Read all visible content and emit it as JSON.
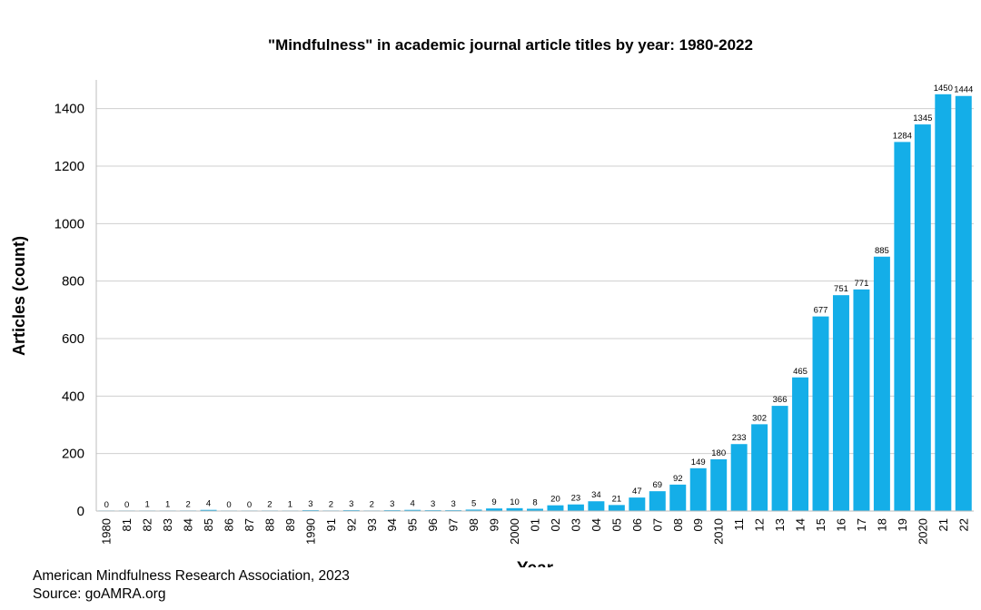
{
  "chart_data": {
    "type": "bar",
    "title": "\"Mindfulness\" in academic journal article titles by year: 1980-2022",
    "xlabel": "Year",
    "ylabel": "Articles (count)",
    "ylim": [
      0,
      1500
    ],
    "yticks": [
      0,
      200,
      400,
      600,
      800,
      1000,
      1200,
      1400
    ],
    "grid": true,
    "legend": "none",
    "bar_color": "#14AEE8",
    "categories": [
      "1980",
      "81",
      "82",
      "83",
      "84",
      "85",
      "86",
      "87",
      "88",
      "89",
      "1990",
      "91",
      "92",
      "93",
      "94",
      "95",
      "96",
      "97",
      "98",
      "99",
      "2000",
      "01",
      "02",
      "03",
      "04",
      "05",
      "06",
      "07",
      "08",
      "09",
      "2010",
      "11",
      "12",
      "13",
      "14",
      "15",
      "16",
      "17",
      "18",
      "19",
      "2020",
      "21",
      "22"
    ],
    "values": [
      0,
      0,
      1,
      1,
      2,
      4,
      0,
      0,
      2,
      1,
      3,
      2,
      3,
      2,
      3,
      4,
      3,
      3,
      5,
      9,
      10,
      8,
      20,
      23,
      34,
      21,
      47,
      69,
      92,
      149,
      180,
      233,
      302,
      366,
      465,
      677,
      751,
      771,
      885,
      1284,
      1345,
      1450,
      1444
    ]
  },
  "footer": {
    "line1": "American Mindfulness Research Association, 2023",
    "line2": "Source: goAMRA.org"
  }
}
